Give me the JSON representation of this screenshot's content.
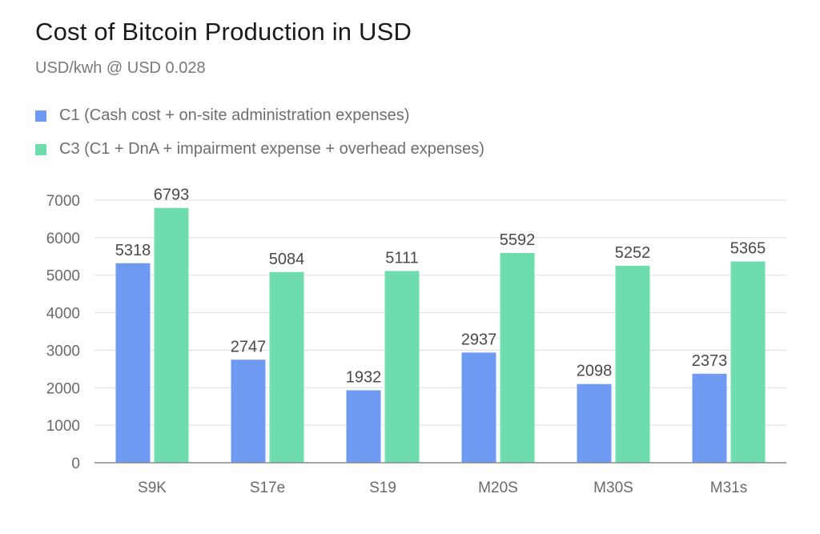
{
  "chart_data": {
    "type": "bar",
    "title": "Cost of Bitcoin Production in USD",
    "subtitle": "USD/kwh @ USD 0.028",
    "categories": [
      "S9K",
      "S17e",
      "S19",
      "M20S",
      "M30S",
      "M31s"
    ],
    "series": [
      {
        "name": "C1 (Cash cost + on-site administration expenses)",
        "color": "#6f9af2",
        "values": [
          5318,
          2747,
          1932,
          2937,
          2098,
          2373
        ]
      },
      {
        "name": "C3  (C1 + DnA + impairment expense + overhead expenses)",
        "color": "#6fdcad",
        "values": [
          6793,
          5084,
          5111,
          5592,
          5252,
          5365
        ]
      }
    ],
    "ylim": [
      0,
      7000
    ],
    "yticks": [
      "0",
      "1000",
      "2000",
      "3000",
      "4000",
      "5000",
      "6000",
      "7000"
    ],
    "grid": true,
    "legend_position": "top-left",
    "data_labels": true
  }
}
